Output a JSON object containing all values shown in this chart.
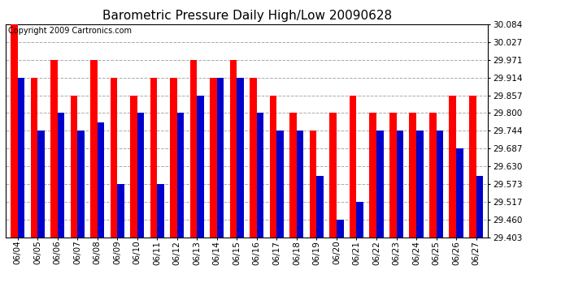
{
  "title": "Barometric Pressure Daily High/Low 20090628",
  "copyright": "Copyright 2009 Cartronics.com",
  "dates": [
    "06/04",
    "06/05",
    "06/06",
    "06/07",
    "06/08",
    "06/09",
    "06/10",
    "06/11",
    "06/12",
    "06/13",
    "06/14",
    "06/15",
    "06/16",
    "06/17",
    "06/18",
    "06/19",
    "06/20",
    "06/21",
    "06/22",
    "06/23",
    "06/24",
    "06/25",
    "06/26",
    "06/27"
  ],
  "highs": [
    30.084,
    29.914,
    29.971,
    29.857,
    29.971,
    29.914,
    29.857,
    29.914,
    29.914,
    29.971,
    29.914,
    29.971,
    29.914,
    29.857,
    29.8,
    29.744,
    29.8,
    29.857,
    29.8,
    29.8,
    29.8,
    29.8,
    29.857,
    29.857
  ],
  "lows": [
    29.914,
    29.744,
    29.8,
    29.744,
    29.771,
    29.573,
    29.8,
    29.573,
    29.8,
    29.857,
    29.914,
    29.914,
    29.8,
    29.744,
    29.744,
    29.6,
    29.46,
    29.517,
    29.744,
    29.744,
    29.744,
    29.744,
    29.687,
    29.6
  ],
  "high_color": "#ff0000",
  "low_color": "#0000cc",
  "bg_color": "#ffffff",
  "grid_color": "#aaaaaa",
  "ylim_min": 29.403,
  "ylim_max": 30.084,
  "yticks": [
    30.084,
    30.027,
    29.971,
    29.914,
    29.857,
    29.8,
    29.744,
    29.687,
    29.63,
    29.573,
    29.517,
    29.46,
    29.403
  ],
  "title_fontsize": 11,
  "copyright_fontsize": 7,
  "tick_fontsize": 7.5,
  "bar_width": 0.35
}
